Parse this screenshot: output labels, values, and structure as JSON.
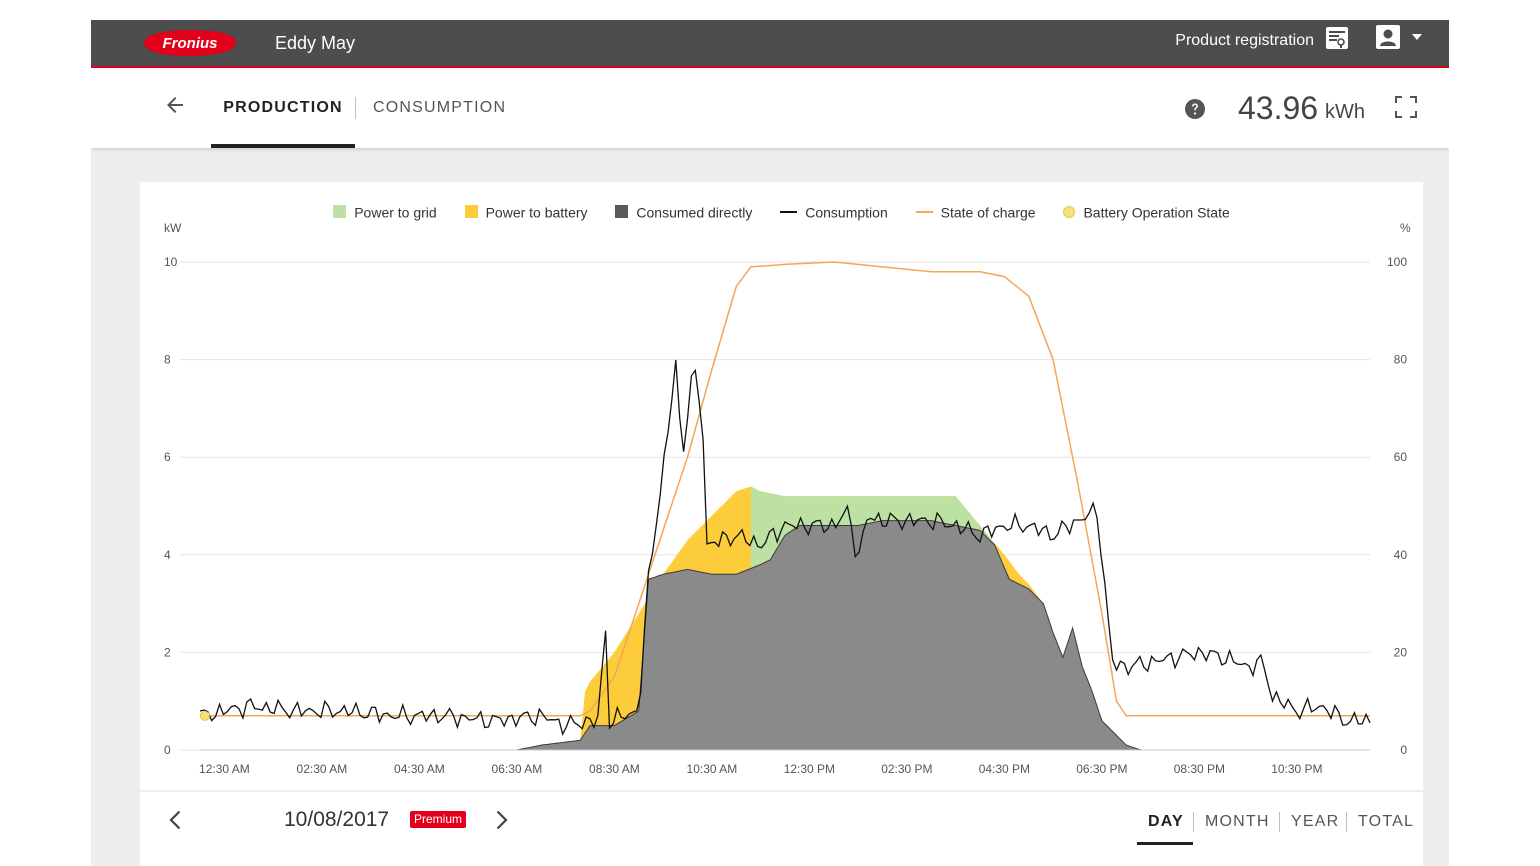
{
  "header": {
    "logo_text": "Fronius",
    "owner_name": "Eddy May",
    "product_registration": "Product registration"
  },
  "tabs": {
    "production": "PRODUCTION",
    "consumption": "CONSUMPTION"
  },
  "total": {
    "value": "43.96",
    "unit": "kWh"
  },
  "icons": [
    "fronius-logo",
    "product-registration-icon",
    "user-icon",
    "chevron-down-icon",
    "back-arrow-icon",
    "help-icon",
    "fullscreen-icon",
    "chevron-left-icon",
    "chevron-right-icon"
  ],
  "colors": {
    "brand_red": "#e2001a",
    "topbar": "#4d4d4d",
    "grid_green": "#bde0a3",
    "battery_yellow": "#fccc3a",
    "consumed_grey": "#8a8a8a",
    "consumption_line": "#111111",
    "soc_orange": "#f2a65a",
    "battery_state": "#f5e27a"
  },
  "footer": {
    "date": "10/08/2017",
    "premium_badge": "Premium",
    "periods": {
      "day": "DAY",
      "month": "MONTH",
      "year": "YEAR",
      "total": "TOTAL"
    },
    "selected_period": "DAY"
  },
  "chart_data": {
    "type": "area",
    "legend": [
      "Power to grid",
      "Power to battery",
      "Consumed directly",
      "Consumption",
      "State of charge",
      "Battery Operation State"
    ],
    "legend_placement": "top-center",
    "grid": true,
    "y_left_unit": "kW",
    "y_right_unit": "%",
    "y_left_range": [
      0,
      10
    ],
    "y_right_range": [
      0,
      100
    ],
    "y_left_ticks": [
      "0",
      "2",
      "4",
      "6",
      "8",
      "10"
    ],
    "y_right_ticks": [
      "0",
      "20",
      "40",
      "60",
      "80",
      "100"
    ],
    "x_range_hours": [
      0,
      24
    ],
    "x_tick_labels": [
      "12:30 AM",
      "02:30 AM",
      "04:30 AM",
      "06:30 AM",
      "08:30 AM",
      "10:30 AM",
      "12:30 PM",
      "02:30 PM",
      "04:30 PM",
      "06:30 PM",
      "08:30 PM",
      "10:30 PM"
    ],
    "x_tick_hours": [
      0.5,
      2.5,
      4.5,
      6.5,
      8.5,
      10.5,
      12.5,
      14.5,
      16.5,
      18.5,
      20.5,
      22.5
    ],
    "production_total_kw": [
      [
        0,
        0
      ],
      [
        6.5,
        0
      ],
      [
        7,
        0.1
      ],
      [
        7.8,
        0.2
      ],
      [
        7.9,
        1.2
      ],
      [
        8,
        1.4
      ],
      [
        8.5,
        2
      ],
      [
        9,
        2.8
      ],
      [
        9.5,
        3.6
      ],
      [
        10,
        4.3
      ],
      [
        10.5,
        4.8
      ],
      [
        11,
        5.3
      ],
      [
        11.3,
        5.4
      ],
      [
        11.5,
        5.3
      ],
      [
        12,
        5.2
      ],
      [
        13,
        5.2
      ],
      [
        14,
        5.2
      ],
      [
        15,
        5.2
      ],
      [
        15.5,
        5.2
      ],
      [
        16,
        4.6
      ],
      [
        16.5,
        4
      ],
      [
        16.8,
        3.6
      ],
      [
        17,
        3.4
      ],
      [
        17.3,
        3
      ],
      [
        17.5,
        2.4
      ],
      [
        17.7,
        1.9
      ],
      [
        17.9,
        2.5
      ],
      [
        18.1,
        1.7
      ],
      [
        18.3,
        1.2
      ],
      [
        18.5,
        0.6
      ],
      [
        18.8,
        0.3
      ],
      [
        19,
        0.1
      ],
      [
        19.3,
        0
      ],
      [
        24,
        0
      ]
    ],
    "consumed_directly_kw": [
      [
        0,
        0
      ],
      [
        6.5,
        0
      ],
      [
        7,
        0.1
      ],
      [
        7.8,
        0.2
      ],
      [
        8,
        0.5
      ],
      [
        8.5,
        0.5
      ],
      [
        9,
        0.8
      ],
      [
        9.2,
        3.5
      ],
      [
        9.5,
        3.6
      ],
      [
        10,
        3.7
      ],
      [
        10.5,
        3.6
      ],
      [
        11,
        3.6
      ],
      [
        11.5,
        3.8
      ],
      [
        11.7,
        3.9
      ],
      [
        12,
        4.4
      ],
      [
        12.3,
        4.6
      ],
      [
        13,
        4.6
      ],
      [
        13.5,
        4.6
      ],
      [
        14,
        4.7
      ],
      [
        14.5,
        4.7
      ],
      [
        15,
        4.7
      ],
      [
        15.5,
        4.6
      ],
      [
        16,
        4.5
      ],
      [
        16.3,
        4.2
      ],
      [
        16.6,
        3.5
      ],
      [
        17,
        3.3
      ],
      [
        17.3,
        3
      ],
      [
        17.5,
        2.4
      ],
      [
        17.7,
        1.9
      ],
      [
        17.9,
        2.5
      ],
      [
        18.1,
        1.7
      ],
      [
        18.3,
        1.2
      ],
      [
        18.5,
        0.6
      ],
      [
        18.8,
        0.3
      ],
      [
        19,
        0.1
      ],
      [
        19.3,
        0
      ],
      [
        24,
        0
      ]
    ],
    "power_to_grid_kw_range": [
      11.3,
      16.3
    ],
    "consumption_kw": [
      [
        0,
        0.7
      ],
      [
        1,
        0.9
      ],
      [
        2,
        0.8
      ],
      [
        3,
        0.8
      ],
      [
        4,
        0.7
      ],
      [
        5,
        0.7
      ],
      [
        6,
        0.6
      ],
      [
        7,
        0.7
      ],
      [
        7.5,
        0.5
      ],
      [
        8,
        0.6
      ],
      [
        8.2,
        0.6
      ],
      [
        8.3,
        2.9
      ],
      [
        8.4,
        0.6
      ],
      [
        9,
        0.8
      ],
      [
        9.2,
        3.5
      ],
      [
        9.6,
        6.5
      ],
      [
        9.75,
        8
      ],
      [
        9.9,
        6
      ],
      [
        10.1,
        7.8
      ],
      [
        10.3,
        7
      ],
      [
        10.4,
        4.2
      ],
      [
        10.7,
        4.3
      ],
      [
        11,
        4.4
      ],
      [
        11.5,
        4.2
      ],
      [
        12,
        4.6
      ],
      [
        12.5,
        4.6
      ],
      [
        13,
        4.6
      ],
      [
        13.3,
        4.9
      ],
      [
        13.5,
        3.9
      ],
      [
        13.7,
        4.8
      ],
      [
        14,
        4.7
      ],
      [
        14.5,
        4.7
      ],
      [
        15,
        4.7
      ],
      [
        15.5,
        4.6
      ],
      [
        16,
        4.4
      ],
      [
        16.5,
        4.6
      ],
      [
        17,
        4.6
      ],
      [
        17.5,
        4.4
      ],
      [
        18,
        4.7
      ],
      [
        18.4,
        4.9
      ],
      [
        18.6,
        3
      ],
      [
        18.7,
        1.8
      ],
      [
        19,
        1.7
      ],
      [
        19.5,
        1.8
      ],
      [
        20,
        1.9
      ],
      [
        20.5,
        2
      ],
      [
        21,
        1.9
      ],
      [
        21.5,
        1.7
      ],
      [
        21.8,
        1.8
      ],
      [
        22,
        1.1
      ],
      [
        22.5,
        0.8
      ],
      [
        23,
        0.9
      ],
      [
        23.5,
        0.6
      ],
      [
        24,
        0.6
      ]
    ],
    "state_of_charge_pct": [
      [
        0,
        7
      ],
      [
        7.8,
        7
      ],
      [
        8,
        8
      ],
      [
        8.5,
        15
      ],
      [
        9,
        30
      ],
      [
        9.5,
        45
      ],
      [
        10,
        60
      ],
      [
        10.5,
        78
      ],
      [
        11,
        95
      ],
      [
        11.3,
        99
      ],
      [
        12,
        99.5
      ],
      [
        13,
        100
      ],
      [
        13.5,
        99.5
      ],
      [
        14,
        99
      ],
      [
        15,
        98
      ],
      [
        16,
        98
      ],
      [
        16.5,
        97
      ],
      [
        17,
        93
      ],
      [
        17.5,
        80
      ],
      [
        18,
        55
      ],
      [
        18.5,
        28
      ],
      [
        18.8,
        10
      ],
      [
        19,
        7
      ],
      [
        24,
        7
      ]
    ],
    "battery_operation_state_point": [
      0.1,
      7
    ]
  }
}
